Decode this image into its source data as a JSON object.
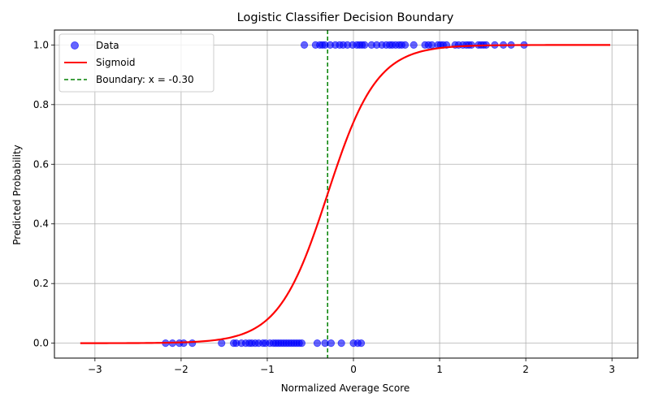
{
  "chart_data": {
    "type": "scatter",
    "title": "Logistic Classifier Decision Boundary",
    "xlabel": "Normalized Average Score",
    "ylabel": "Predicted Probability",
    "xlim": [
      -3.47,
      3.3
    ],
    "ylim": [
      -0.05,
      1.05
    ],
    "xticks": [
      -3,
      -2,
      -1,
      0,
      1,
      2,
      3
    ],
    "xtick_labels": [
      "−3",
      "−2",
      "−1",
      "0",
      "1",
      "2",
      "3"
    ],
    "yticks": [
      0.0,
      0.2,
      0.4,
      0.6,
      0.8,
      1.0
    ],
    "ytick_labels": [
      "0.0",
      "0.2",
      "0.4",
      "0.6",
      "0.8",
      "1.0"
    ],
    "grid": true,
    "legend_position": "top-left",
    "series": [
      {
        "name": "Data",
        "kind": "scatter",
        "color": "#0000ff",
        "points": [
          [
            -2.18,
            0
          ],
          [
            -2.1,
            0
          ],
          [
            -2.02,
            0
          ],
          [
            -1.97,
            0
          ],
          [
            -1.87,
            0
          ],
          [
            -1.53,
            0
          ],
          [
            -1.39,
            0
          ],
          [
            -1.36,
            0
          ],
          [
            -1.3,
            0
          ],
          [
            -1.25,
            0
          ],
          [
            -1.21,
            0
          ],
          [
            -1.18,
            0
          ],
          [
            -1.14,
            0
          ],
          [
            -1.1,
            0
          ],
          [
            -1.05,
            0
          ],
          [
            -1.02,
            0
          ],
          [
            -0.97,
            0
          ],
          [
            -0.93,
            0
          ],
          [
            -0.9,
            0
          ],
          [
            -0.87,
            0
          ],
          [
            -0.84,
            0
          ],
          [
            -0.81,
            0
          ],
          [
            -0.78,
            0
          ],
          [
            -0.75,
            0
          ],
          [
            -0.72,
            0
          ],
          [
            -0.69,
            0
          ],
          [
            -0.66,
            0
          ],
          [
            -0.63,
            0
          ],
          [
            -0.6,
            0
          ],
          [
            -0.42,
            0
          ],
          [
            -0.33,
            0
          ],
          [
            -0.26,
            0
          ],
          [
            -0.14,
            0
          ],
          [
            0.0,
            0
          ],
          [
            0.05,
            0
          ],
          [
            0.09,
            0
          ],
          [
            -0.57,
            1
          ],
          [
            -0.44,
            1
          ],
          [
            -0.39,
            1
          ],
          [
            -0.36,
            1
          ],
          [
            -0.33,
            1
          ],
          [
            -0.27,
            1
          ],
          [
            -0.21,
            1
          ],
          [
            -0.16,
            1
          ],
          [
            -0.12,
            1
          ],
          [
            -0.07,
            1
          ],
          [
            -0.01,
            1
          ],
          [
            0.04,
            1
          ],
          [
            0.07,
            1
          ],
          [
            0.1,
            1
          ],
          [
            0.13,
            1
          ],
          [
            0.21,
            1
          ],
          [
            0.27,
            1
          ],
          [
            0.33,
            1
          ],
          [
            0.38,
            1
          ],
          [
            0.42,
            1
          ],
          [
            0.45,
            1
          ],
          [
            0.49,
            1
          ],
          [
            0.53,
            1
          ],
          [
            0.56,
            1
          ],
          [
            0.6,
            1
          ],
          [
            0.7,
            1
          ],
          [
            0.83,
            1
          ],
          [
            0.87,
            1
          ],
          [
            0.91,
            1
          ],
          [
            0.98,
            1
          ],
          [
            1.01,
            1
          ],
          [
            1.04,
            1
          ],
          [
            1.08,
            1
          ],
          [
            1.18,
            1
          ],
          [
            1.22,
            1
          ],
          [
            1.27,
            1
          ],
          [
            1.31,
            1
          ],
          [
            1.34,
            1
          ],
          [
            1.37,
            1
          ],
          [
            1.45,
            1
          ],
          [
            1.48,
            1
          ],
          [
            1.51,
            1
          ],
          [
            1.54,
            1
          ],
          [
            1.64,
            1
          ],
          [
            1.74,
            1
          ],
          [
            1.83,
            1
          ],
          [
            1.98,
            1
          ]
        ]
      },
      {
        "name": "Sigmoid",
        "kind": "line",
        "color": "#ff0000",
        "x_range": [
          -3.17,
          2.98
        ],
        "midpoint": -0.3,
        "slope": 3.5
      },
      {
        "name": "Boundary: x = -0.30",
        "kind": "vline",
        "color": "#008000",
        "x": -0.3
      }
    ]
  }
}
